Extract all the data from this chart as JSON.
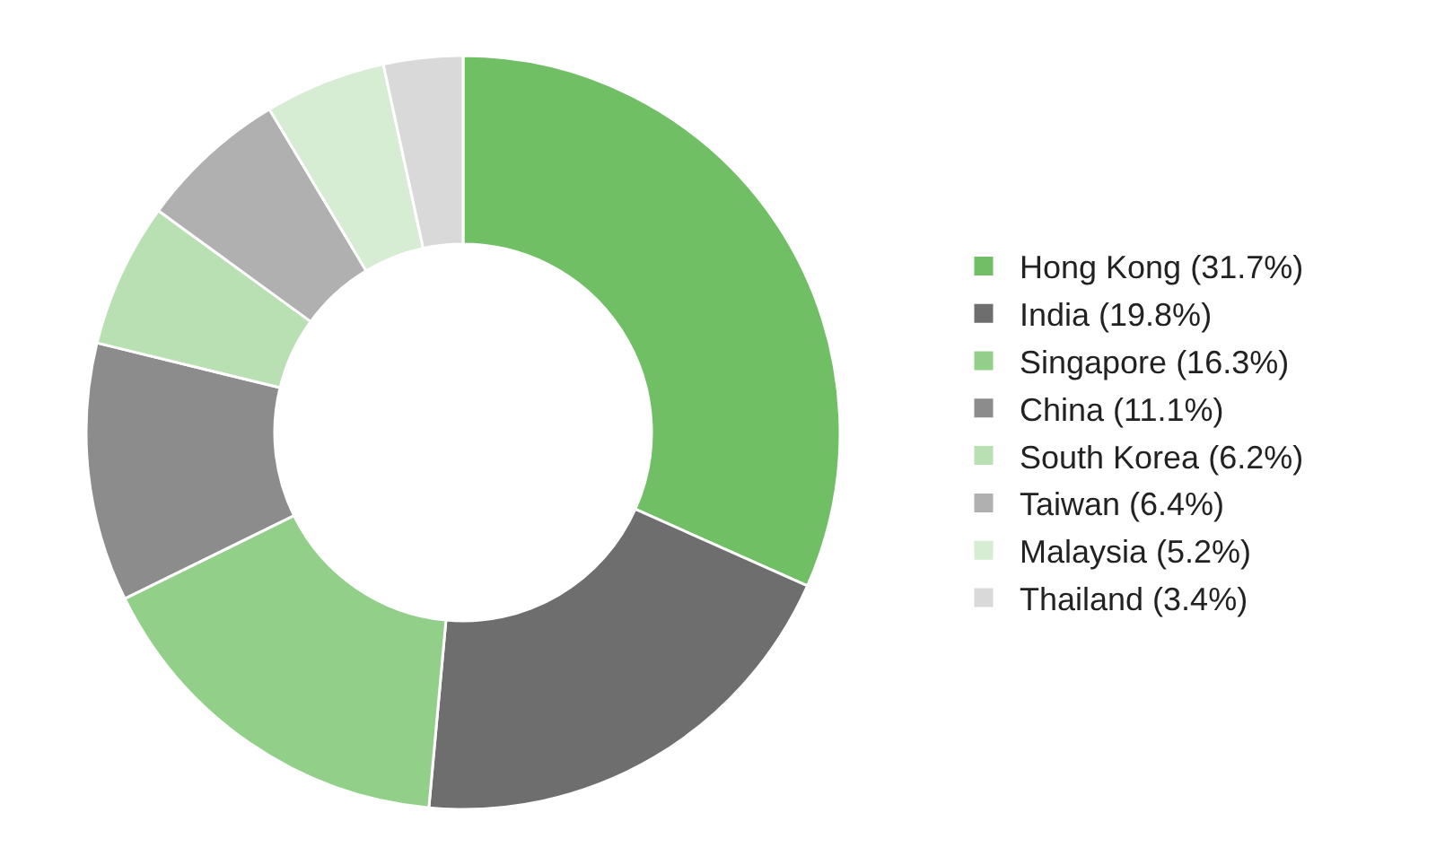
{
  "chart_data": {
    "type": "donut",
    "categories": [
      "Hong Kong (31.7%)",
      "India (19.8%)",
      "Singapore (16.3%)",
      "China (11.1%)",
      "South Korea (6.2%)",
      "Taiwan (6.4%)",
      "Malaysia (5.2%)",
      "Thailand (3.4%)"
    ],
    "values": [
      31.7,
      19.8,
      16.3,
      11.1,
      6.2,
      6.4,
      5.2,
      3.4
    ],
    "colors": [
      "#70bf65",
      "#6e6e6e",
      "#92d08a",
      "#8c8c8c",
      "#b9e0b2",
      "#b0b0b0",
      "#d7edd3",
      "#d9d9d9"
    ],
    "legend": "right"
  }
}
